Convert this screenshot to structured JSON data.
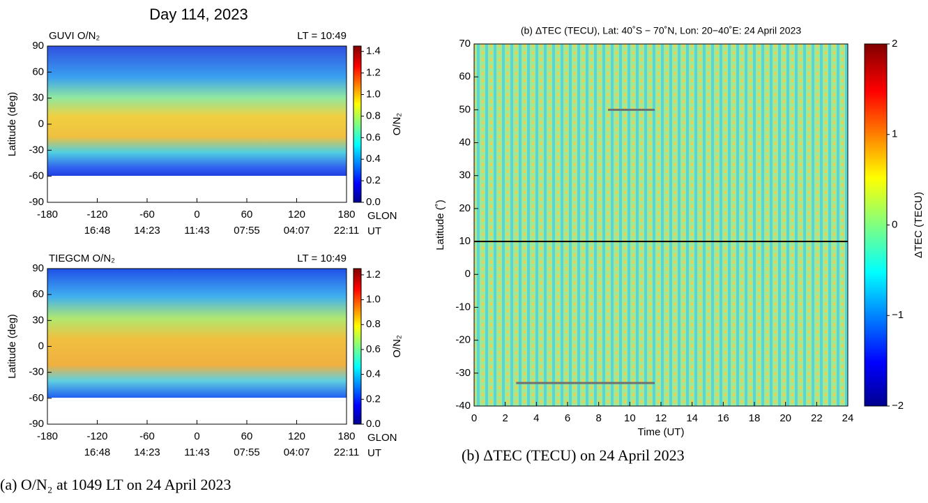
{
  "figure_title": "Day 114, 2023",
  "chart_data": [
    {
      "type": "heatmap",
      "title": "GUVI O/N₂",
      "subtitle": "LT = 10:49",
      "y_label": "Latitude (deg)",
      "x_label": "GLON",
      "x2_label": "UT",
      "xlim": [
        -180,
        180
      ],
      "xticks": [
        -180,
        -120,
        -60,
        0,
        60,
        120,
        180
      ],
      "x2ticks": [
        {
          "value": -120,
          "label": "16:48"
        },
        {
          "value": -60,
          "label": "14:23"
        },
        {
          "value": 0,
          "label": "11:43"
        },
        {
          "value": 60,
          "label": "07:55"
        },
        {
          "value": 120,
          "label": "04:07"
        },
        {
          "value": 180,
          "label": "22:11"
        }
      ],
      "ylim": [
        -90,
        90
      ],
      "yticks": [
        90,
        60,
        30,
        0,
        -30,
        -60,
        -90
      ],
      "colorbar": {
        "label": "O/N₂",
        "lim": [
          0,
          1.45
        ],
        "ticks": [
          {
            "value": 0,
            "label": "0.0"
          },
          0.2,
          0.4,
          0.6,
          0.8,
          {
            "value": 1,
            "label": "1.0"
          },
          1.2,
          1.4
        ]
      }
    },
    {
      "type": "heatmap",
      "title": "TIEGCM O/N₂",
      "subtitle": "LT = 10:49",
      "y_label": "Latitude (deg)",
      "x_label": "GLON",
      "x2_label": "UT",
      "xlim": [
        -180,
        180
      ],
      "xticks": [
        -180,
        -120,
        -60,
        0,
        60,
        120,
        180
      ],
      "x2ticks": [
        {
          "value": -120,
          "label": "16:48"
        },
        {
          "value": -60,
          "label": "14:23"
        },
        {
          "value": 0,
          "label": "11:43"
        },
        {
          "value": 60,
          "label": "07:55"
        },
        {
          "value": 120,
          "label": "04:07"
        },
        {
          "value": 180,
          "label": "22:11"
        }
      ],
      "ylim": [
        -90,
        90
      ],
      "yticks": [
        90,
        60,
        30,
        0,
        -30,
        -60,
        -90
      ],
      "colorbar": {
        "label": "O/N₂",
        "lim": [
          0,
          1.25
        ],
        "ticks": [
          {
            "value": 0,
            "label": "0.0"
          },
          0.2,
          0.4,
          0.6,
          0.8,
          {
            "value": 1,
            "label": "1.0"
          },
          1.2
        ]
      }
    },
    {
      "type": "heatmap",
      "title": "(b) ΔTEC (TECU), Lat: 40˚S − 70˚N, Lon: 20−40˚E: 24 April 2023",
      "y_label": "Latitude (˚)",
      "x_label": "Time (UT)",
      "xlim": [
        0,
        24
      ],
      "xticks": [
        0,
        2,
        4,
        6,
        8,
        10,
        12,
        14,
        16,
        18,
        20,
        22,
        24
      ],
      "ylim": [
        -40,
        70
      ],
      "yticks": [
        70,
        60,
        50,
        40,
        30,
        20,
        10,
        0,
        -10,
        -20,
        -30,
        -40
      ],
      "hline": 10,
      "segments": [
        {
          "x": [
            8.6,
            11.6
          ],
          "y": 50
        },
        {
          "x": [
            2.7,
            11.6
          ],
          "y": -33
        }
      ],
      "colorbar": {
        "label": "ΔTEC (TECU)",
        "lim": [
          -2,
          2
        ],
        "ticks": [
          {
            "value": -2,
            "label": "−2"
          },
          {
            "value": -1,
            "label": "−1"
          },
          0,
          1,
          2
        ]
      }
    }
  ],
  "captions": [
    "(a) O/N₂ at 1049 LT on 24 April 2023",
    "(b) ΔTEC (TECU) on 24 April 2023"
  ]
}
